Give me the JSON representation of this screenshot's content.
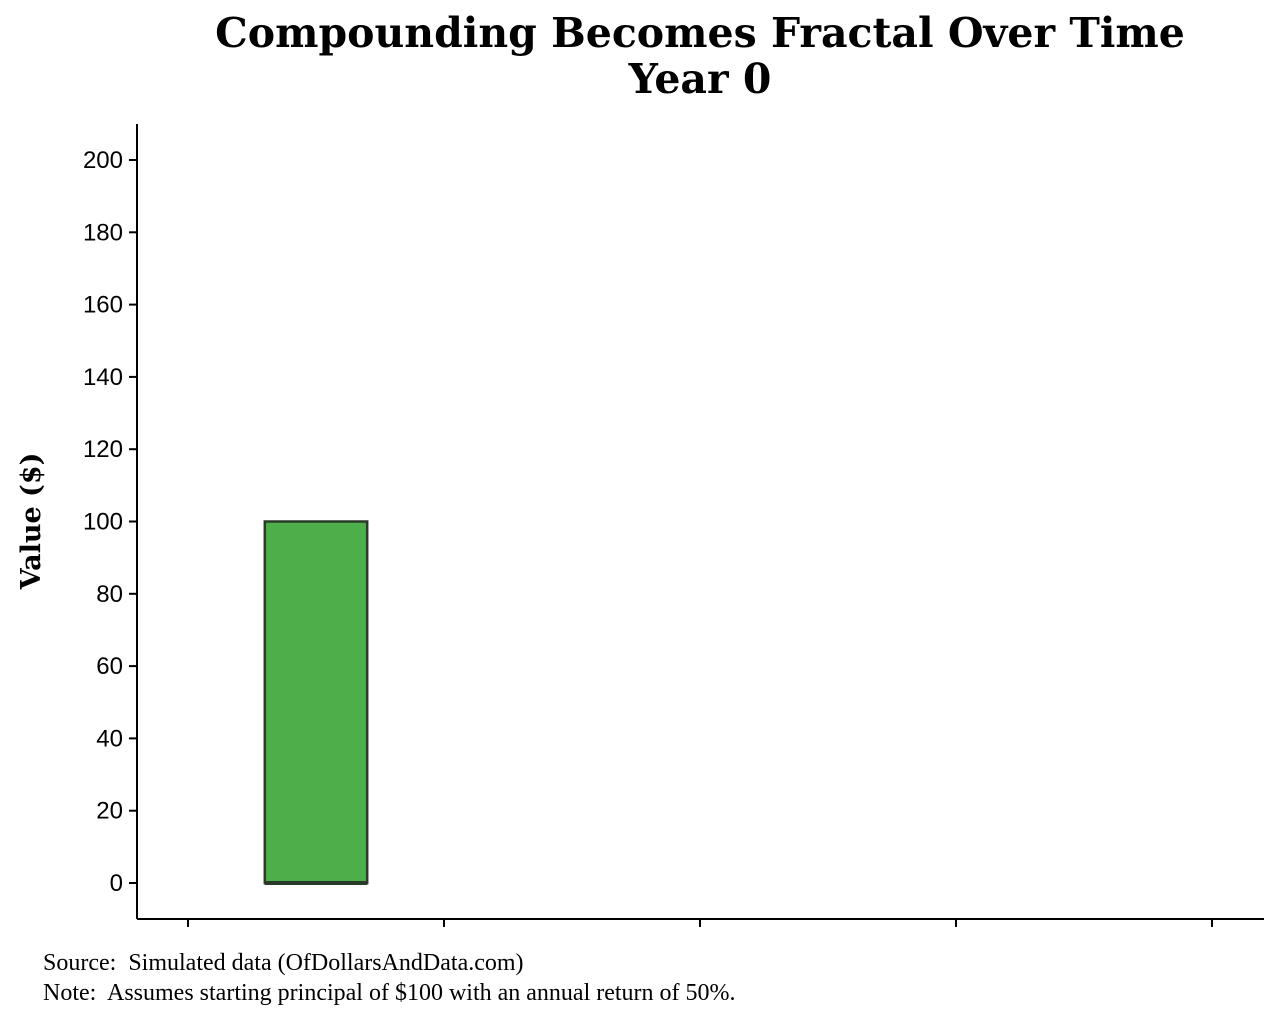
{
  "chart_data": {
    "type": "bar",
    "title": "Compounding Becomes Fractal Over Time",
    "subtitle": "Year 0",
    "ylabel": "Value ($)",
    "xlabel": "",
    "ylim": [
      -10,
      210
    ],
    "yticks": [
      0,
      20,
      40,
      60,
      80,
      100,
      120,
      140,
      160,
      180,
      200
    ],
    "bars": [
      {
        "x": 0.5,
        "value": 100,
        "width": 0.4
      }
    ],
    "xlim": [
      0,
      4.4
    ],
    "xticks": [
      0,
      1,
      2,
      3,
      4
    ],
    "bar_color": "#4daf4a",
    "bar_edge_color": "#2a3a2a",
    "grid": false,
    "legend": "none"
  },
  "footer": {
    "source": "Source:  Simulated data (OfDollarsAndData.com)",
    "note": "Note:  Assumes starting principal of $100 with an annual return of 50%."
  }
}
